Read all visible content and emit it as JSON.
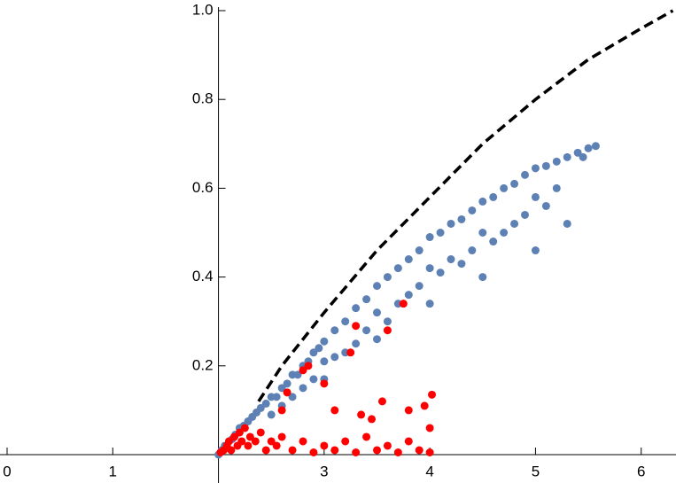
{
  "chart_data": {
    "type": "scatter",
    "xlim": [
      0,
      6.3
    ],
    "ylim": [
      0,
      1.0
    ],
    "xticks": [
      0,
      1,
      3,
      4,
      5,
      6
    ],
    "yticks": [
      0.2,
      0.4,
      0.6,
      0.8,
      {
        "value": 1,
        "label": "1.0"
      }
    ],
    "axes_origin": [
      2,
      0
    ],
    "series": [
      {
        "color": "#5e81b5",
        "marker": "dot",
        "x": [
          2.0,
          2.03,
          2.06,
          2.1,
          2.13,
          2.16,
          2.2,
          2.24,
          2.28,
          2.32,
          2.36,
          2.4,
          2.45,
          2.5,
          2.5,
          2.55,
          2.6,
          2.6,
          2.65,
          2.7,
          2.7,
          2.75,
          2.8,
          2.8,
          2.85,
          2.9,
          2.9,
          2.95,
          3.0,
          3.0,
          3.0,
          3.1,
          3.1,
          3.2,
          3.2,
          3.3,
          3.3,
          3.4,
          3.4,
          3.5,
          3.5,
          3.5,
          3.6,
          3.6,
          3.7,
          3.7,
          3.8,
          3.8,
          3.9,
          3.9,
          4.0,
          4.0,
          4.0,
          4.1,
          4.1,
          4.2,
          4.2,
          4.3,
          4.3,
          4.4,
          4.4,
          4.5,
          4.5,
          4.5,
          4.6,
          4.6,
          4.7,
          4.7,
          4.8,
          4.8,
          4.9,
          4.9,
          5.0,
          5.0,
          5.0,
          5.1,
          5.1,
          5.2,
          5.2,
          5.3,
          5.3,
          5.4,
          5.45,
          5.5,
          5.57
        ],
        "values": [
          0.0,
          0.01,
          0.02,
          0.03,
          0.035,
          0.045,
          0.06,
          0.065,
          0.075,
          0.085,
          0.095,
          0.105,
          0.115,
          0.13,
          0.09,
          0.13,
          0.15,
          0.11,
          0.16,
          0.18,
          0.13,
          0.18,
          0.2,
          0.15,
          0.21,
          0.23,
          0.17,
          0.24,
          0.255,
          0.21,
          0.17,
          0.28,
          0.22,
          0.3,
          0.23,
          0.33,
          0.25,
          0.35,
          0.28,
          0.38,
          0.32,
          0.26,
          0.4,
          0.3,
          0.42,
          0.34,
          0.44,
          0.36,
          0.46,
          0.38,
          0.49,
          0.42,
          0.34,
          0.5,
          0.41,
          0.52,
          0.44,
          0.53,
          0.43,
          0.55,
          0.46,
          0.57,
          0.5,
          0.4,
          0.58,
          0.48,
          0.6,
          0.5,
          0.61,
          0.52,
          0.63,
          0.54,
          0.645,
          0.58,
          0.46,
          0.65,
          0.56,
          0.66,
          0.6,
          0.67,
          0.52,
          0.68,
          0.67,
          0.69,
          0.695
        ]
      },
      {
        "color": "#ff0000",
        "marker": "dot",
        "x": [
          2.02,
          2.05,
          2.08,
          2.1,
          2.12,
          2.15,
          2.18,
          2.2,
          2.22,
          2.25,
          2.28,
          2.3,
          2.35,
          2.4,
          2.45,
          2.5,
          2.55,
          2.6,
          2.7,
          2.8,
          2.9,
          3.0,
          3.1,
          3.2,
          3.3,
          3.4,
          3.5,
          3.6,
          3.7,
          3.8,
          3.9,
          4.0,
          2.6,
          2.65,
          2.8,
          2.85,
          3.0,
          3.1,
          3.25,
          3.3,
          3.35,
          3.45,
          3.55,
          3.6,
          3.75,
          3.8,
          3.95,
          4.0,
          4.02
        ],
        "values": [
          0.005,
          0.01,
          0.02,
          0.03,
          0.01,
          0.04,
          0.02,
          0.05,
          0.03,
          0.06,
          0.02,
          0.04,
          0.03,
          0.05,
          0.01,
          0.03,
          0.02,
          0.04,
          0.01,
          0.03,
          0.005,
          0.02,
          0.01,
          0.03,
          0.005,
          0.04,
          0.01,
          0.02,
          0.005,
          0.03,
          0.01,
          0.005,
          0.1,
          0.14,
          0.19,
          0.2,
          0.16,
          0.1,
          0.23,
          0.29,
          0.09,
          0.08,
          0.12,
          0.28,
          0.34,
          0.1,
          0.11,
          0.06,
          0.135
        ]
      },
      {
        "color": "#000000",
        "marker": "dashed-line",
        "x": [
          2.38,
          2.6,
          3.0,
          3.5,
          4.0,
          4.5,
          5.0,
          5.5,
          6.0,
          6.3
        ],
        "values": [
          0.12,
          0.2,
          0.32,
          0.46,
          0.58,
          0.7,
          0.8,
          0.89,
          0.96,
          1.0
        ]
      }
    ]
  }
}
